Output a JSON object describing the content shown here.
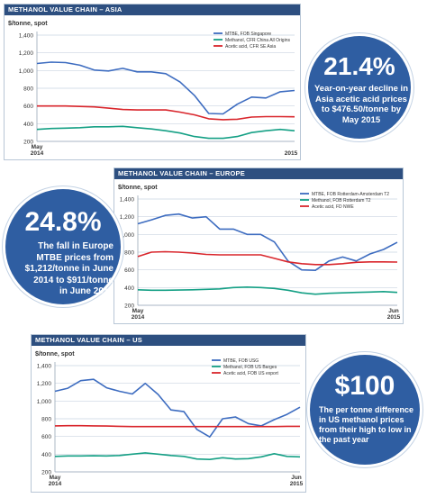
{
  "panels": [
    {
      "id": "asia",
      "title": "METHANOL VALUE CHAIN – ASIA",
      "unit_label": "$/tonne, spot",
      "chart_data": {
        "type": "line",
        "title": "METHANOL VALUE CHAIN – ASIA",
        "ylabel": "$/tonne, spot",
        "ylim": [
          200,
          1400
        ],
        "yticks": [
          200,
          400,
          600,
          800,
          1000,
          1200,
          1400
        ],
        "ytick_labels": [
          "200",
          "400",
          "600",
          "800",
          "1,000",
          "1,200",
          "1,400"
        ],
        "x_start_label": [
          "May",
          "2014"
        ],
        "x_end_label": [
          "",
          "2015"
        ],
        "x": [
          0,
          3,
          6,
          9,
          12,
          15,
          18,
          21,
          24,
          27,
          30,
          33,
          36,
          39,
          42,
          45,
          48,
          51,
          54
        ],
        "series": [
          {
            "name": "MTBE, FOB Singapore",
            "color": "#3d6cc0",
            "values": [
              1080,
              1095,
              1090,
              1060,
              1005,
              995,
              1025,
              985,
              985,
              965,
              870,
              720,
              515,
              510,
              620,
              700,
              690,
              760,
              775
            ]
          },
          {
            "name": "Methanol, CFR China All Origins",
            "color": "#15a085",
            "values": [
              335,
              345,
              350,
              355,
              365,
              365,
              370,
              355,
              340,
              320,
              295,
              255,
              235,
              235,
              255,
              300,
              320,
              335,
              320
            ]
          },
          {
            "name": "Acetic acid, CFR SE Asia",
            "color": "#d9262c",
            "values": [
              600,
              600,
              600,
              595,
              590,
              575,
              560,
              555,
              555,
              555,
              530,
              500,
              455,
              445,
              450,
              475,
              480,
              480,
              478
            ]
          }
        ],
        "legend_position": "top-right",
        "grid": true
      },
      "callout": {
        "headline": "21.4%",
        "text_lines": [
          "Year-on-year decline in",
          "Asia acetic acid prices",
          "to $476.50/tonne by",
          "May 2015"
        ]
      }
    },
    {
      "id": "europe",
      "title": "METHANOL VALUE CHAIN – EUROPE",
      "unit_label": "$/tonne, spot",
      "chart_data": {
        "type": "line",
        "title": "METHANOL VALUE CHAIN – EUROPE",
        "ylabel": "$/tonne, spot",
        "ylim": [
          200,
          1400
        ],
        "yticks": [
          200,
          400,
          600,
          800,
          1000,
          1200,
          1400
        ],
        "ytick_labels": [
          "200",
          "400",
          "600",
          "800",
          "1,000",
          "1,200",
          "1,400"
        ],
        "x_start_label": [
          "May",
          "2014"
        ],
        "x_end_label": [
          "Jun",
          "2015"
        ],
        "x": [
          0,
          3,
          6,
          9,
          12,
          15,
          18,
          21,
          24,
          27,
          30,
          33,
          36,
          39,
          42,
          45,
          48,
          51,
          54,
          57
        ],
        "series": [
          {
            "name": "MTBE, FOB Rotterdam-Amsterdam T2",
            "color": "#3d6cc0",
            "values": [
              1120,
              1165,
              1215,
              1230,
              1185,
              1200,
              1060,
              1060,
              1000,
              1000,
              915,
              700,
              600,
              595,
              700,
              745,
              700,
              780,
              830,
              911
            ]
          },
          {
            "name": "Methanol, FOB Rotterdam T2",
            "color": "#15a085",
            "values": [
              375,
              370,
              370,
              372,
              375,
              380,
              385,
              400,
              405,
              400,
              390,
              370,
              340,
              325,
              335,
              340,
              345,
              350,
              355,
              345
            ]
          },
          {
            "name": "Acetic acid, FD NWE",
            "color": "#d9262c",
            "values": [
              750,
              800,
              805,
              800,
              790,
              775,
              770,
              770,
              770,
              770,
              730,
              690,
              670,
              660,
              660,
              670,
              685,
              690,
              690,
              688
            ]
          }
        ],
        "legend_position": "top-right",
        "grid": true
      },
      "callout": {
        "headline": "24.8%",
        "text_lines": [
          "The fall in Europe",
          "MTBE prices from",
          "$1,212/tonne in June",
          "2014 to $911/tonne",
          "in June 2015"
        ]
      }
    },
    {
      "id": "us",
      "title": "METHANOL VALUE CHAIN – US",
      "unit_label": "$/tonne, spot",
      "chart_data": {
        "type": "line",
        "title": "METHANOL VALUE CHAIN – US",
        "ylabel": "$/tonne, spot",
        "ylim": [
          200,
          1400
        ],
        "yticks": [
          200,
          400,
          600,
          800,
          1000,
          1200,
          1400
        ],
        "ytick_labels": [
          "200",
          "400",
          "600",
          "800",
          "1,000",
          "1,200",
          "1,400"
        ],
        "x_start_label": [
          "May",
          "2014"
        ],
        "x_end_label": [
          "Jun",
          "2015"
        ],
        "x": [
          0,
          3,
          6,
          9,
          12,
          15,
          18,
          21,
          24,
          27,
          30,
          33,
          36,
          39,
          42,
          45,
          48,
          51,
          54,
          57
        ],
        "series": [
          {
            "name": "MTBE, FOB USG",
            "color": "#3d6cc0",
            "values": [
              1110,
              1145,
              1230,
              1245,
              1150,
              1110,
              1080,
              1200,
              1075,
              900,
              880,
              680,
              595,
              800,
              820,
              745,
              720,
              790,
              850,
              930
            ]
          },
          {
            "name": "Methanol, FOB US Barges",
            "color": "#15a085",
            "values": [
              375,
              380,
              380,
              382,
              380,
              385,
              400,
              415,
              400,
              385,
              375,
              345,
              340,
              360,
              345,
              350,
              370,
              405,
              375,
              370
            ]
          },
          {
            "name": "Acetic acid, FOB US export",
            "color": "#d9262c",
            "values": [
              720,
              722,
              722,
              720,
              718,
              715,
              712,
              712,
              712,
              712,
              712,
              712,
              712,
              712,
              712,
              712,
              712,
              712,
              715,
              715
            ]
          }
        ],
        "legend_position": "top-right",
        "grid": true
      },
      "callout": {
        "headline": "$100",
        "text_lines": [
          "The per tonne difference",
          "in US methanol prices",
          "from their high to low in",
          "the past year"
        ]
      }
    }
  ],
  "colors": {
    "header_bg": "#2d4f80",
    "bubble": "#2f5ea2",
    "grid": "#c9d4e0"
  }
}
